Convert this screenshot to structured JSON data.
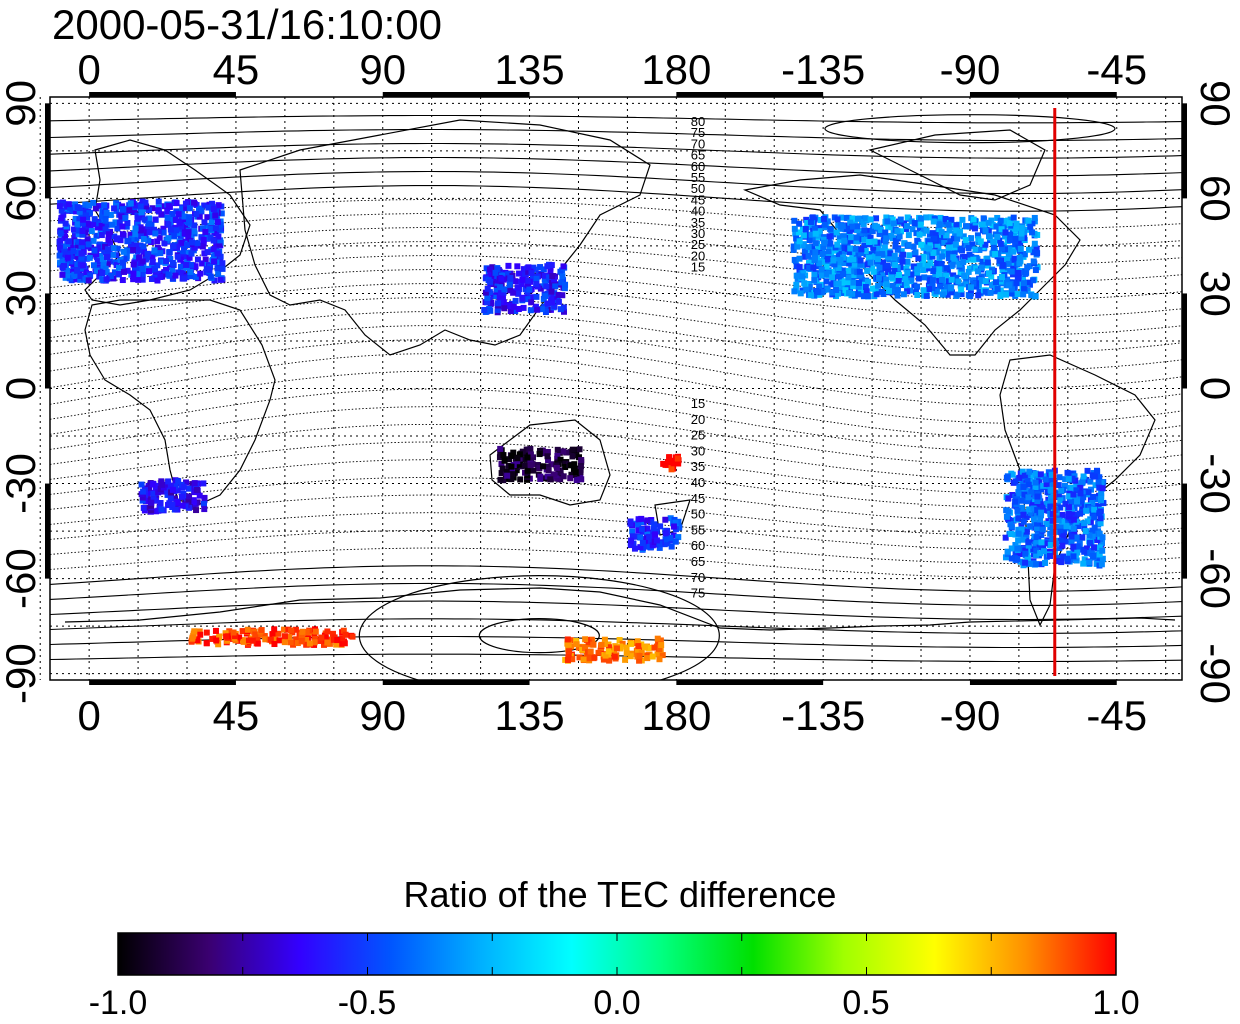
{
  "title": "2000-05-31/16:10:00",
  "map": {
    "lon_ticks": [
      "0",
      "45",
      "90",
      "135",
      "180",
      "-135",
      "-90",
      "-45"
    ],
    "lon_values": [
      0,
      45,
      90,
      135,
      180,
      225,
      270,
      315
    ],
    "lat_ticks": [
      "90",
      "60",
      "30",
      "0",
      "-30",
      "-60",
      "-90"
    ],
    "lat_values": [
      90,
      60,
      30,
      0,
      -30,
      -60,
      -90
    ],
    "lon_range": [
      -12,
      335
    ],
    "lat_range": [
      -92,
      92
    ],
    "red_line_lon": 296,
    "contour_labels_north": [
      "80",
      "75",
      "70",
      "65",
      "60",
      "55",
      "50",
      "45",
      "40",
      "35",
      "30",
      "25",
      "20",
      "15"
    ],
    "contour_labels_south": [
      "15",
      "20",
      "25",
      "30",
      "35",
      "40",
      "45",
      "50",
      "55",
      "60",
      "65",
      "70",
      "75"
    ],
    "grid": true
  },
  "colorbar": {
    "title": "Ratio of the TEC difference",
    "ticks": [
      "-1.0",
      "-0.5",
      "0.0",
      "0.5",
      "1.0"
    ],
    "colors": [
      "#000000",
      "#3a0070",
      "#3300ff",
      "#0055ff",
      "#00b0ff",
      "#00ffff",
      "#00ff80",
      "#00e000",
      "#a0ff00",
      "#ffff00",
      "#ff9000",
      "#ff0000"
    ]
  },
  "chart_data": {
    "type": "heatmap",
    "title": "2000-05-31/16:10:00",
    "value_label": "Ratio of the TEC difference",
    "value_range": [
      -1.0,
      1.0
    ],
    "regions": [
      {
        "lon": [
          -10,
          40
        ],
        "lat": [
          35,
          60
        ],
        "value": -0.5
      },
      {
        "lon": [
          15,
          35
        ],
        "lat": [
          -38,
          -28
        ],
        "value": -0.6
      },
      {
        "lon": [
          120,
          145
        ],
        "lat": [
          25,
          40
        ],
        "value": -0.55
      },
      {
        "lon": [
          215,
          290
        ],
        "lat": [
          30,
          55
        ],
        "value": -0.35
      },
      {
        "lon": [
          280,
          310
        ],
        "lat": [
          -55,
          -25
        ],
        "value": -0.4
      },
      {
        "lon": [
          125,
          150
        ],
        "lat": [
          -28,
          -18
        ],
        "value": -0.9
      },
      {
        "lon": [
          165,
          180
        ],
        "lat": [
          -50,
          -40
        ],
        "value": -0.5
      },
      {
        "lon": [
          30,
          80
        ],
        "lat": [
          -80,
          -75
        ],
        "value": 0.9
      },
      {
        "lon": [
          145,
          175
        ],
        "lat": [
          -85,
          -78
        ],
        "value": 0.8
      },
      {
        "lon": [
          175,
          180
        ],
        "lat": [
          -25,
          -20
        ],
        "value": 1.0
      }
    ]
  }
}
